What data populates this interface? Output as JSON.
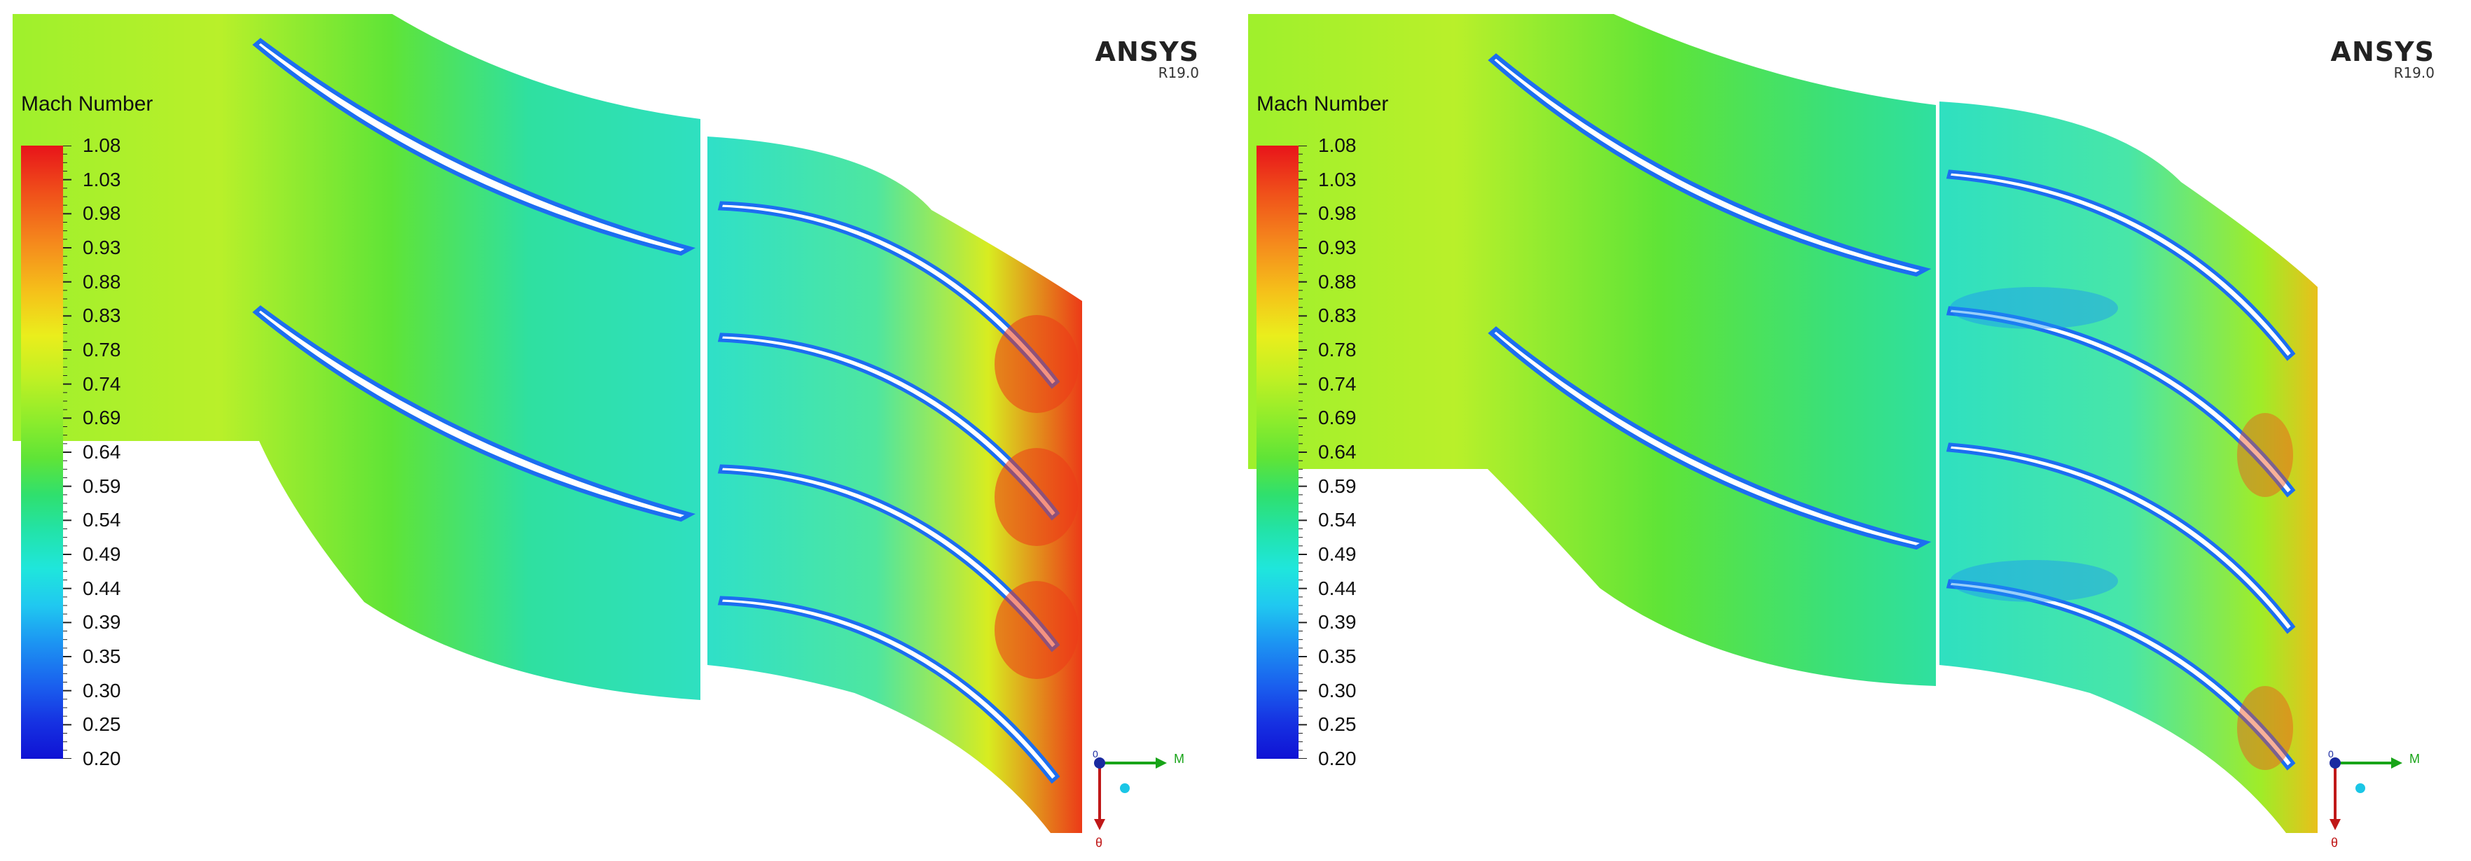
{
  "panels": [
    {
      "legend": {
        "title": "Mach Number",
        "ticks": [
          "1.08",
          "1.03",
          "0.98",
          "0.93",
          "0.88",
          "0.83",
          "0.78",
          "0.74",
          "0.69",
          "0.64",
          "0.59",
          "0.54",
          "0.49",
          "0.44",
          "0.39",
          "0.35",
          "0.30",
          "0.25",
          "0.20"
        ]
      },
      "brand": {
        "name": "ANSYS",
        "version": "R19.0"
      },
      "axes": {
        "x_label": "M",
        "y_label": "θ",
        "z_label": "0"
      }
    },
    {
      "legend": {
        "title": "Mach Number",
        "ticks": [
          "1.08",
          "1.03",
          "0.98",
          "0.93",
          "0.88",
          "0.83",
          "0.78",
          "0.74",
          "0.69",
          "0.64",
          "0.59",
          "0.54",
          "0.49",
          "0.44",
          "0.39",
          "0.35",
          "0.30",
          "0.25",
          "0.20"
        ]
      },
      "brand": {
        "name": "ANSYS",
        "version": "R19.0"
      },
      "axes": {
        "x_label": "M",
        "y_label": "θ",
        "z_label": "0"
      }
    }
  ],
  "colors": {
    "background": "#ffffff",
    "field_base": "#2fe06e",
    "field_upstream": "#9ff02c",
    "blade": "#ffffff",
    "hot": "#e8141a",
    "cold": "#1632e2"
  }
}
